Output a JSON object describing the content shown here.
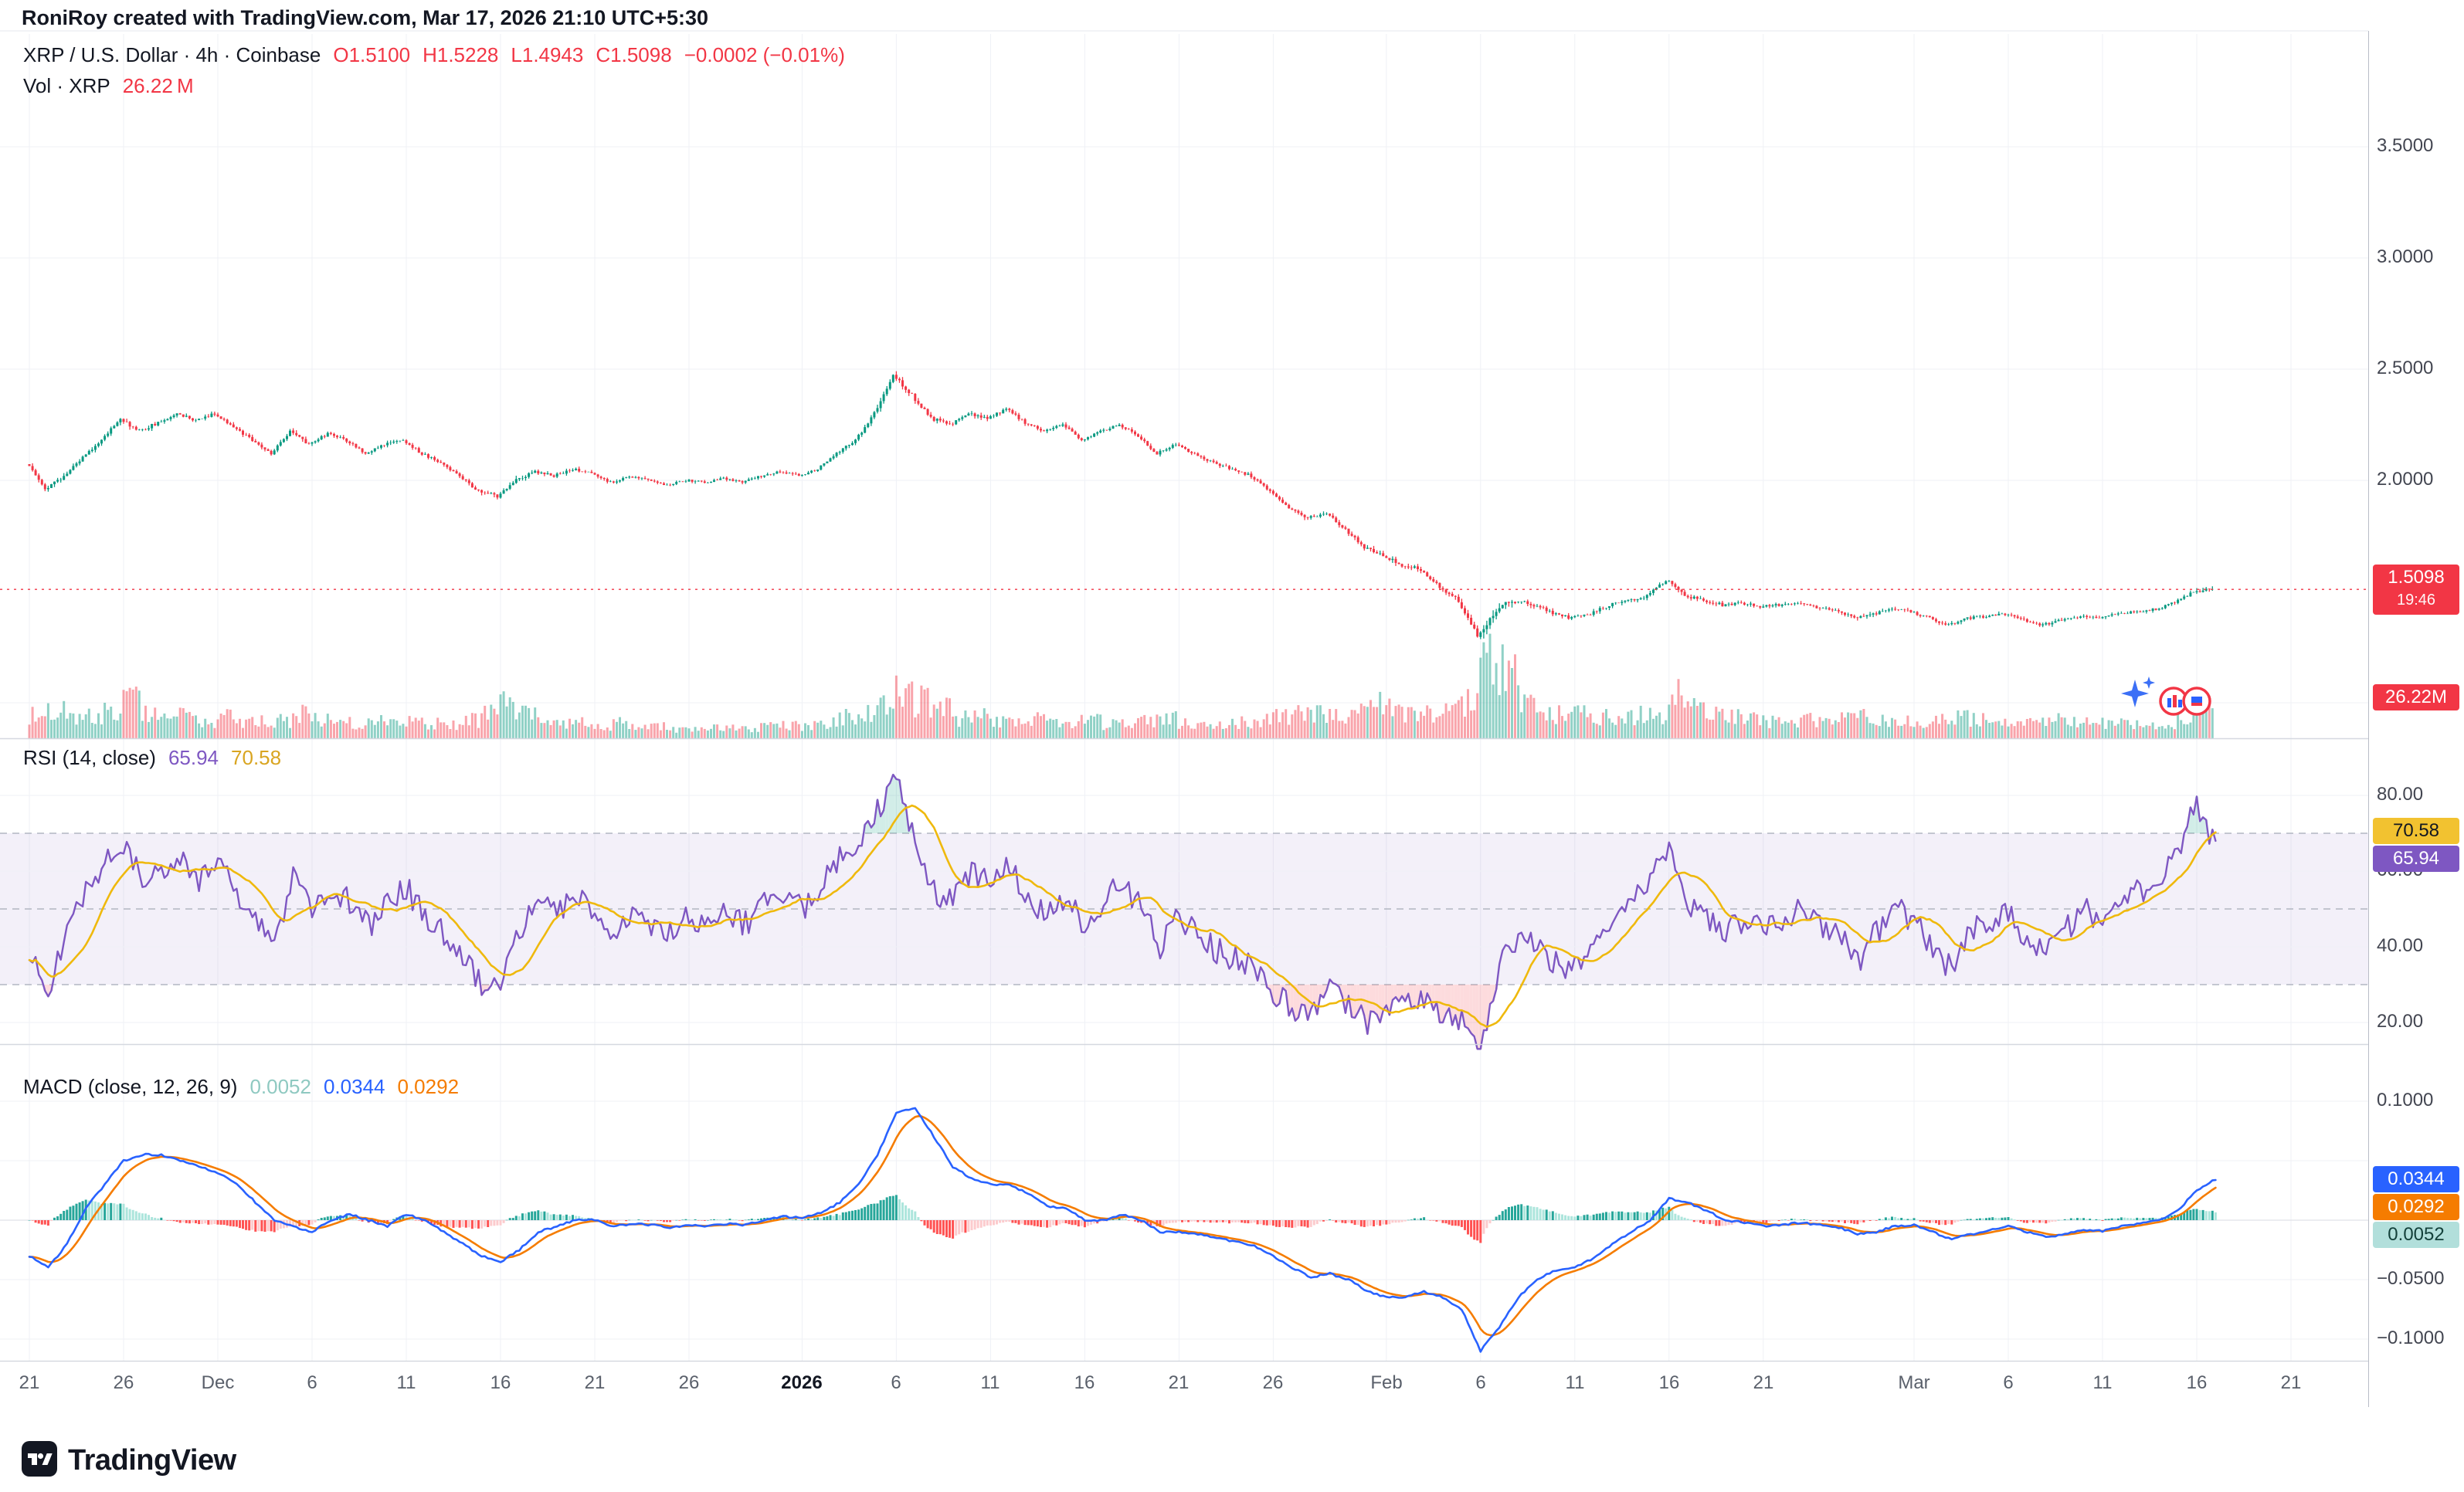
{
  "header": {
    "attribution": "RoniRoy created with TradingView.com, Mar 17, 2026 21:10 UTC+5:30"
  },
  "legend": {
    "title": "XRP / U.S. Dollar · 4h · Coinbase",
    "open": "O1.5100",
    "high": "H1.5228",
    "low": "L1.4943",
    "close": "C1.5098",
    "change": "−0.0002 (−0.01%)",
    "volume_label": "Vol · XRP",
    "volume_value": "26.22 M"
  },
  "rsi": {
    "label": "RSI (14, close)",
    "value": "65.94",
    "ma_value": "70.58"
  },
  "macd": {
    "label": "MACD (close, 12, 26, 9)",
    "hist_value": "0.0052",
    "macd_value": "0.0344",
    "signal_value": "0.0292"
  },
  "price_axis": {
    "ticks": [
      {
        "v": 3.5,
        "label": "3.5000"
      },
      {
        "v": 3.0,
        "label": "3.0000"
      },
      {
        "v": 2.5,
        "label": "2.5000"
      },
      {
        "v": 2.0,
        "label": "2.0000"
      }
    ],
    "grid_only": [
      1.0
    ],
    "last_badge": {
      "price": "1.5098",
      "countdown": "19:46"
    },
    "volume_badge": "26.22M"
  },
  "rsi_axis": {
    "ticks": [
      {
        "v": 80,
        "label": "80.00"
      },
      {
        "v": 60,
        "label": "60.00"
      },
      {
        "v": 40,
        "label": "40.00"
      },
      {
        "v": 20,
        "label": "20.00"
      }
    ],
    "bands": [
      70,
      50,
      30
    ]
  },
  "macd_axis": {
    "ticks": [
      {
        "v": 0.1,
        "label": "0.1000"
      },
      {
        "v": -0.05,
        "label": "−0.0500"
      },
      {
        "v": -0.1,
        "label": "−0.1000"
      }
    ],
    "grid_only": [
      0.05,
      0
    ]
  },
  "time_axis": {
    "labels": [
      {
        "day": 0,
        "label": "21"
      },
      {
        "day": 5,
        "label": "26"
      },
      {
        "day": 10,
        "label": "Dec"
      },
      {
        "day": 15,
        "label": "6"
      },
      {
        "day": 20,
        "label": "11"
      },
      {
        "day": 25,
        "label": "16"
      },
      {
        "day": 30,
        "label": "21"
      },
      {
        "day": 35,
        "label": "26"
      },
      {
        "day": 41,
        "label": "2026",
        "bold": true
      },
      {
        "day": 46,
        "label": "6"
      },
      {
        "day": 51,
        "label": "11"
      },
      {
        "day": 56,
        "label": "16"
      },
      {
        "day": 61,
        "label": "21"
      },
      {
        "day": 66,
        "label": "26"
      },
      {
        "day": 72,
        "label": "Feb"
      },
      {
        "day": 77,
        "label": "6"
      },
      {
        "day": 82,
        "label": "11"
      },
      {
        "day": 87,
        "label": "16"
      },
      {
        "day": 92,
        "label": "21"
      },
      {
        "day": 100,
        "label": "Mar"
      },
      {
        "day": 105,
        "label": "6"
      },
      {
        "day": 110,
        "label": "11"
      },
      {
        "day": 115,
        "label": "16"
      },
      {
        "day": 120,
        "label": "21"
      }
    ]
  },
  "footer": {
    "brand": "TradingView"
  },
  "colors": {
    "up": "#089981",
    "down": "#F23645",
    "rsi_line": "#7E57C2",
    "rsi_ma_line": "#EFB90D",
    "macd_line": "#2962FF",
    "signal_line": "#F57C00",
    "hist_pos": "#26A69A",
    "hist_pos_weak": "#ACE5DC",
    "hist_neg": "#FF5252",
    "hist_neg_weak": "#FCCBCD",
    "last_price": "#F23645"
  },
  "chart_data": {
    "type": "candlestick",
    "symbol": "XRP / U.S. Dollar",
    "exchange": "Coinbase",
    "timeframe": "4h",
    "title": "XRP / U.S. Dollar · 4h · Coinbase",
    "date_range": {
      "start": "Nov 21",
      "end": "Mar 17"
    },
    "sampling_note": "daily closes read from chart; rendered as 4h candles",
    "ylim_visible": [
      1.14,
      3.92
    ],
    "ohlc_current": {
      "open": 1.51,
      "high": 1.5228,
      "low": 1.4943,
      "close": 1.5098,
      "change": -0.0002,
      "change_pct": -0.01
    },
    "volume_current": "26.22M",
    "close": [
      2.08,
      1.96,
      2.02,
      2.1,
      2.18,
      2.28,
      2.22,
      2.26,
      2.3,
      2.27,
      2.3,
      2.24,
      2.18,
      2.12,
      2.22,
      2.16,
      2.21,
      2.18,
      2.12,
      2.16,
      2.18,
      2.12,
      2.08,
      2.02,
      1.95,
      1.93,
      2.0,
      2.04,
      2.02,
      2.05,
      2.03,
      1.99,
      2.02,
      2.0,
      1.98,
      2.0,
      1.99,
      2.01,
      1.99,
      2.02,
      2.04,
      2.02,
      2.05,
      2.12,
      2.18,
      2.3,
      2.47,
      2.38,
      2.28,
      2.25,
      2.3,
      2.28,
      2.32,
      2.26,
      2.22,
      2.25,
      2.18,
      2.22,
      2.25,
      2.2,
      2.12,
      2.16,
      2.12,
      2.08,
      2.05,
      2.02,
      1.95,
      1.88,
      1.83,
      1.85,
      1.78,
      1.7,
      1.66,
      1.62,
      1.6,
      1.52,
      1.46,
      1.3,
      1.42,
      1.46,
      1.44,
      1.4,
      1.38,
      1.4,
      1.44,
      1.46,
      1.48,
      1.55,
      1.48,
      1.46,
      1.44,
      1.45,
      1.43,
      1.44,
      1.45,
      1.43,
      1.42,
      1.38,
      1.4,
      1.42,
      1.41,
      1.38,
      1.35,
      1.38,
      1.39,
      1.4,
      1.37,
      1.35,
      1.37,
      1.39,
      1.38,
      1.4,
      1.41,
      1.42,
      1.45,
      1.5,
      1.5098
    ],
    "volume_rel": [
      0.3,
      0.35,
      0.25,
      0.28,
      0.32,
      0.45,
      0.3,
      0.25,
      0.28,
      0.22,
      0.25,
      0.22,
      0.2,
      0.22,
      0.3,
      0.22,
      0.2,
      0.18,
      0.2,
      0.18,
      0.2,
      0.18,
      0.18,
      0.22,
      0.35,
      0.4,
      0.28,
      0.2,
      0.18,
      0.18,
      0.16,
      0.18,
      0.15,
      0.14,
      0.12,
      0.14,
      0.12,
      0.14,
      0.13,
      0.15,
      0.16,
      0.15,
      0.18,
      0.25,
      0.3,
      0.45,
      0.55,
      0.45,
      0.35,
      0.25,
      0.28,
      0.22,
      0.25,
      0.22,
      0.2,
      0.2,
      0.22,
      0.18,
      0.18,
      0.2,
      0.25,
      0.2,
      0.18,
      0.18,
      0.2,
      0.22,
      0.28,
      0.35,
      0.3,
      0.25,
      0.3,
      0.4,
      0.35,
      0.3,
      0.28,
      0.35,
      0.45,
      1.0,
      0.8,
      0.45,
      0.35,
      0.3,
      0.28,
      0.25,
      0.25,
      0.28,
      0.3,
      0.5,
      0.35,
      0.28,
      0.25,
      0.22,
      0.2,
      0.2,
      0.22,
      0.2,
      0.22,
      0.28,
      0.22,
      0.2,
      0.2,
      0.22,
      0.25,
      0.22,
      0.2,
      0.2,
      0.22,
      0.25,
      0.2,
      0.22,
      0.2,
      0.18,
      0.18,
      0.2,
      0.25,
      0.38,
      0.3
    ],
    "indicators": {
      "rsi": {
        "period": 14,
        "source": "close",
        "current": 65.94,
        "ma_current": 70.58,
        "values": [
          40,
          28,
          45,
          55,
          62,
          68,
          58,
          60,
          64,
          58,
          62,
          54,
          48,
          42,
          58,
          50,
          56,
          52,
          45,
          52,
          56,
          47,
          44,
          38,
          30,
          28,
          45,
          52,
          48,
          53,
          49,
          42,
          50,
          46,
          43,
          48,
          46,
          50,
          46,
          52,
          55,
          50,
          56,
          63,
          68,
          76,
          85,
          68,
          55,
          52,
          60,
          57,
          62,
          53,
          48,
          54,
          44,
          52,
          57,
          50,
          40,
          48,
          43,
          39,
          37,
          34,
          28,
          24,
          22,
          30,
          24,
          20,
          25,
          24,
          26,
          22,
          20,
          14,
          35,
          42,
          40,
          36,
          34,
          40,
          48,
          52,
          56,
          68,
          52,
          48,
          44,
          47,
          44,
          47,
          50,
          45,
          43,
          36,
          44,
          50,
          47,
          40,
          34,
          44,
          47,
          50,
          42,
          38,
          44,
          50,
          46,
          52,
          55,
          58,
          65,
          78,
          65.94
        ]
      },
      "macd": {
        "params": "close, 12, 26, 9",
        "macd_current": 0.0344,
        "signal_current": 0.0292,
        "hist_current": 0.0052,
        "macd_values": [
          -0.03,
          -0.04,
          -0.02,
          0.01,
          0.03,
          0.05,
          0.055,
          0.055,
          0.05,
          0.045,
          0.04,
          0.03,
          0.015,
          0.0,
          -0.005,
          -0.01,
          0.0,
          0.005,
          0.0,
          -0.005,
          0.005,
          0.0,
          -0.01,
          -0.02,
          -0.03,
          -0.035,
          -0.025,
          -0.01,
          -0.005,
          0.0,
          0.0,
          -0.005,
          -0.003,
          -0.004,
          -0.006,
          -0.004,
          -0.005,
          -0.003,
          -0.004,
          0.0,
          0.003,
          0.002,
          0.006,
          0.015,
          0.03,
          0.055,
          0.09,
          0.095,
          0.07,
          0.045,
          0.035,
          0.03,
          0.03,
          0.022,
          0.012,
          0.01,
          0.0,
          0.0,
          0.005,
          0.0,
          -0.01,
          -0.01,
          -0.012,
          -0.015,
          -0.018,
          -0.022,
          -0.03,
          -0.04,
          -0.048,
          -0.045,
          -0.05,
          -0.06,
          -0.065,
          -0.065,
          -0.06,
          -0.065,
          -0.075,
          -0.11,
          -0.09,
          -0.065,
          -0.05,
          -0.042,
          -0.04,
          -0.032,
          -0.02,
          -0.01,
          0.0,
          0.018,
          0.015,
          0.008,
          0.0,
          -0.002,
          -0.005,
          -0.004,
          -0.002,
          -0.004,
          -0.006,
          -0.012,
          -0.01,
          -0.005,
          -0.004,
          -0.01,
          -0.016,
          -0.012,
          -0.008,
          -0.005,
          -0.01,
          -0.014,
          -0.012,
          -0.008,
          -0.009,
          -0.005,
          -0.003,
          0.0,
          0.008,
          0.025,
          0.0344
        ]
      }
    }
  }
}
